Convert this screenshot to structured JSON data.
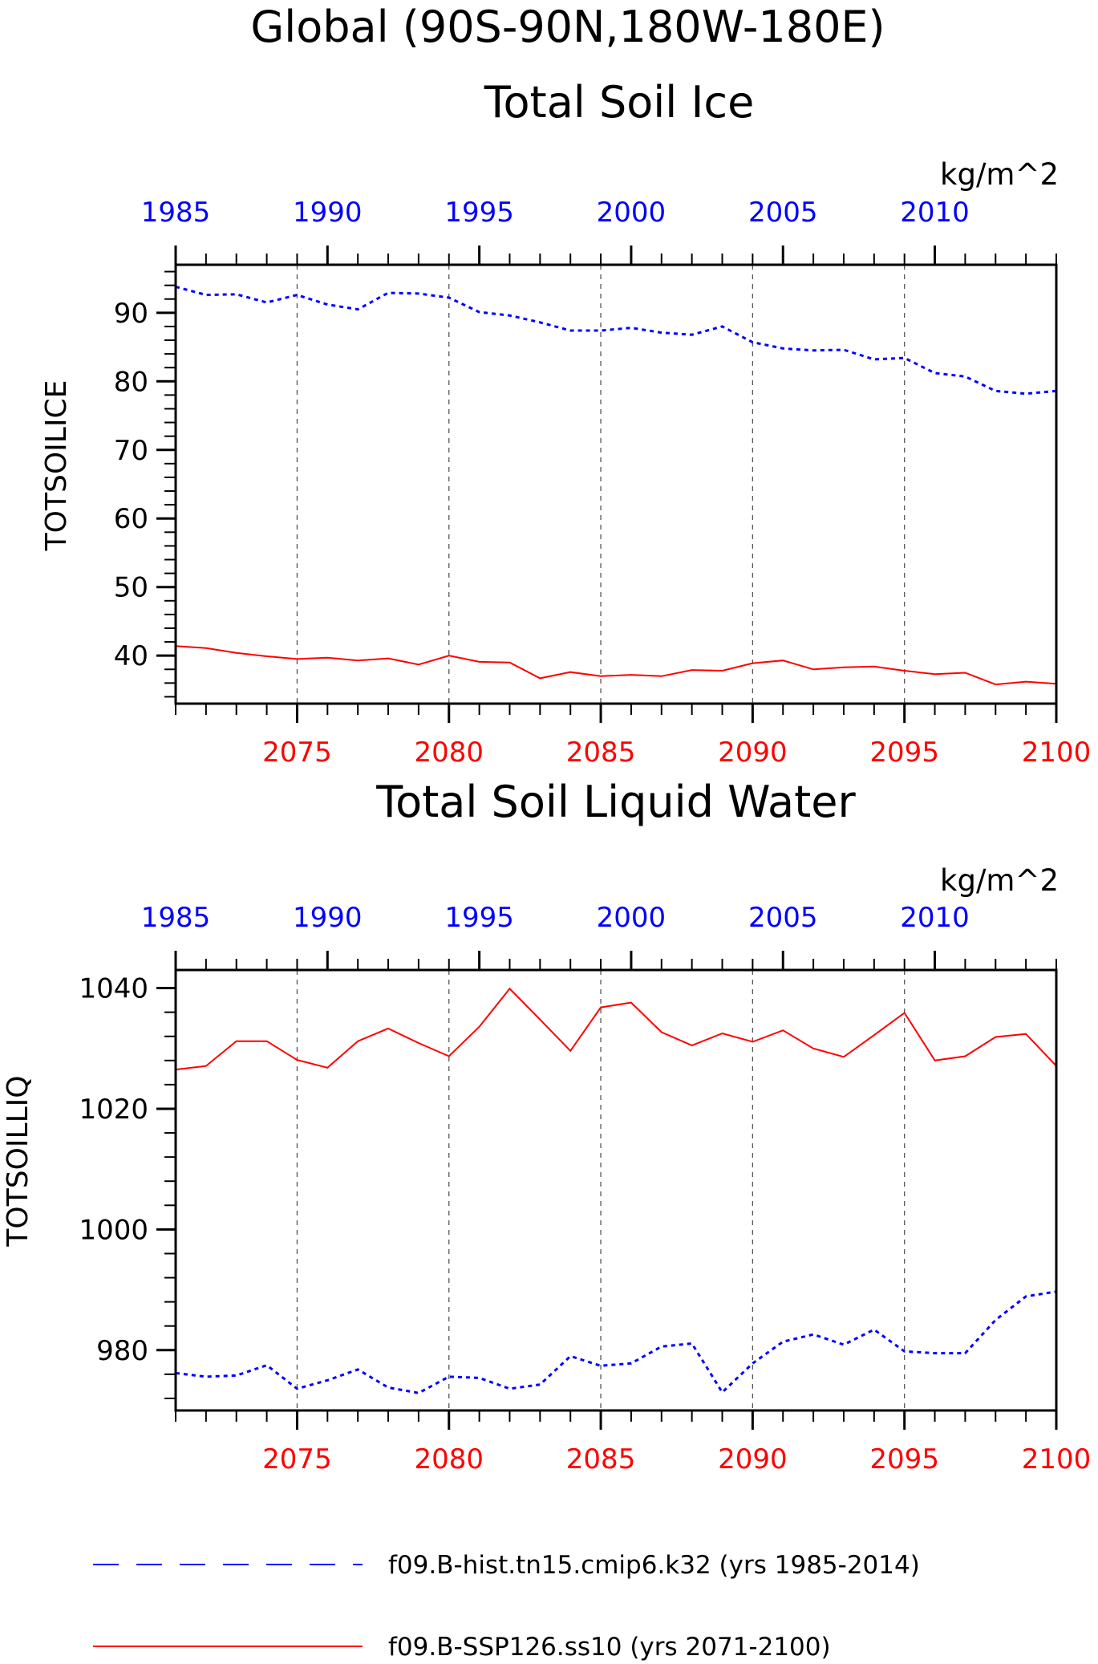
{
  "figure": {
    "title_line1": "Global (90S-90N,180W-180E)",
    "legend": [
      {
        "label": "f09.B-hist.tn15.cmip6.k32 (yrs 1985-2014)",
        "color": "#0000ff",
        "style": "dashed"
      },
      {
        "label": "f09.B-SSP126.ss10 (yrs 2071-2100)",
        "color": "#ff0000",
        "style": "solid"
      }
    ]
  },
  "chart_data": [
    {
      "type": "line",
      "title": "Total Soil Ice",
      "ylabel": "TOTSOILICE",
      "units": "kg/m^2",
      "ylim": [
        33,
        97
      ],
      "y_ticks": [
        40,
        50,
        60,
        70,
        80,
        90
      ],
      "y_minor_step": 2,
      "bottom_axis": {
        "range": [
          2071,
          2100
        ],
        "ticks": [
          2075,
          2080,
          2085,
          2090,
          2095,
          2100
        ],
        "color": "#ff0000"
      },
      "top_axis": {
        "range": [
          1985,
          2014
        ],
        "ticks": [
          1985,
          1990,
          1995,
          2000,
          2005,
          2010
        ],
        "color": "#0000ff"
      },
      "grid": "vertical dashed at bottom ticks",
      "series": [
        {
          "name": "f09.B-hist.tn15.cmip6.k32 (yrs 1985-2014)",
          "axis": "top",
          "color": "#0000ff",
          "style": "dotted",
          "values": [
            93.8,
            92.6,
            92.7,
            91.5,
            92.6,
            91.2,
            90.5,
            92.9,
            92.8,
            92.2,
            90.1,
            89.6,
            88.6,
            87.4,
            87.4,
            87.8,
            87.1,
            86.8,
            88.0,
            85.7,
            84.8,
            84.5,
            84.6,
            83.2,
            83.4,
            81.2,
            80.7,
            78.6,
            78.2,
            78.6
          ]
        },
        {
          "name": "f09.B-SSP126.ss10 (yrs 2071-2100)",
          "axis": "bottom",
          "color": "#ff0000",
          "style": "solid",
          "values": [
            41.4,
            41.1,
            40.4,
            39.9,
            39.5,
            39.7,
            39.3,
            39.6,
            38.7,
            40.0,
            39.1,
            39.0,
            36.7,
            37.6,
            37.0,
            37.2,
            37.0,
            37.9,
            37.8,
            38.9,
            39.3,
            38.0,
            38.3,
            38.4,
            37.8,
            37.3,
            37.5,
            35.8,
            36.2,
            35.9
          ]
        }
      ]
    },
    {
      "type": "line",
      "title": "Total Soil Liquid Water",
      "ylabel": "TOTSOILLIQ",
      "units": "kg/m^2",
      "ylim": [
        970,
        1043
      ],
      "y_ticks": [
        980,
        1000,
        1020,
        1040
      ],
      "y_minor_step": 4,
      "bottom_axis": {
        "range": [
          2071,
          2100
        ],
        "ticks": [
          2075,
          2080,
          2085,
          2090,
          2095,
          2100
        ],
        "color": "#ff0000"
      },
      "top_axis": {
        "range": [
          1985,
          2014
        ],
        "ticks": [
          1985,
          1990,
          1995,
          2000,
          2005,
          2010
        ],
        "color": "#0000ff"
      },
      "grid": "vertical dashed at bottom ticks",
      "series": [
        {
          "name": "f09.B-hist.tn15.cmip6.k32 (yrs 1985-2014)",
          "axis": "top",
          "color": "#0000ff",
          "style": "dotted",
          "values": [
            976.2,
            975.6,
            975.8,
            977.5,
            973.6,
            975.0,
            976.8,
            973.8,
            972.9,
            975.6,
            975.4,
            973.6,
            974.3,
            979.0,
            977.4,
            977.8,
            980.6,
            981.1,
            973.0,
            977.8,
            981.4,
            982.6,
            980.9,
            983.4,
            979.8,
            979.5,
            979.5,
            985.0,
            988.9,
            989.7
          ]
        },
        {
          "name": "f09.B-SSP126.ss10 (yrs 2071-2100)",
          "axis": "bottom",
          "color": "#ff0000",
          "style": "solid",
          "values": [
            1026.5,
            1027.1,
            1031.2,
            1031.2,
            1028.1,
            1026.8,
            1031.2,
            1033.3,
            1030.9,
            1028.7,
            1033.6,
            1039.9,
            1034.8,
            1029.6,
            1036.8,
            1037.6,
            1032.7,
            1030.5,
            1032.5,
            1031.1,
            1033.0,
            1030.0,
            1028.6,
            1032.2,
            1035.9,
            1028.0,
            1028.7,
            1031.9,
            1032.4,
            1027.1
          ]
        }
      ]
    }
  ]
}
